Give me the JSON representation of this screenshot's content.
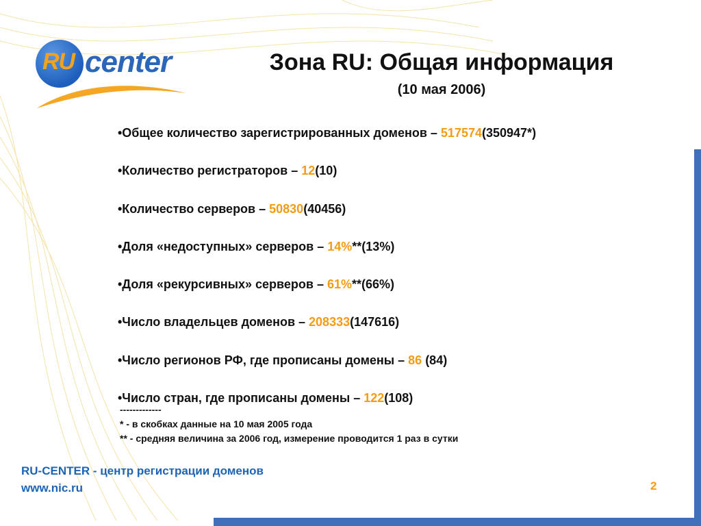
{
  "logo": {
    "ru": "RU",
    "word": "center"
  },
  "header": {
    "title": "Зона RU: Общая информация",
    "subtitle": "(10 мая 2006)"
  },
  "bullets": [
    {
      "label": "•Общее количество зарегистрированных доменов – ",
      "value": "517574",
      "suffix": "(350947*)"
    },
    {
      "label": "•Количество регистраторов – ",
      "value": "12",
      "suffix": "(10)"
    },
    {
      "label": "•Количество серверов – ",
      "value": "50830",
      "suffix": "(40456)"
    },
    {
      "label": "•Доля «недоступных» серверов – ",
      "value": "14%",
      "suffix": "**(13%)"
    },
    {
      "label": "•Доля «рекурсивных» серверов – ",
      "value": "61%",
      "suffix": "**(66%)"
    },
    {
      "label": "•Число владельцев доменов – ",
      "value": "208333",
      "suffix": "(147616)"
    },
    {
      "label": "•Число регионов РФ, где прописаны домены – ",
      "value": "86",
      "suffix": " (84)"
    },
    {
      "label": "•Число стран, где прописаны домены – ",
      "value": "122",
      "suffix": "(108)"
    }
  ],
  "notes": {
    "separator": "-------------",
    "note1": "* - в скобках данные на 10 мая 2005 года",
    "note2": "** - средняя величина за 2006 год, измерение проводится 1 раз в сутки"
  },
  "footer": {
    "line1": "RU-CENTER - центр регистрации доменов",
    "line2": "www.nic.ru"
  },
  "page_number": "2",
  "colors": {
    "accent": "#f39c12",
    "brand_blue": "#1e64b4",
    "frame": "#3f6fb8"
  }
}
